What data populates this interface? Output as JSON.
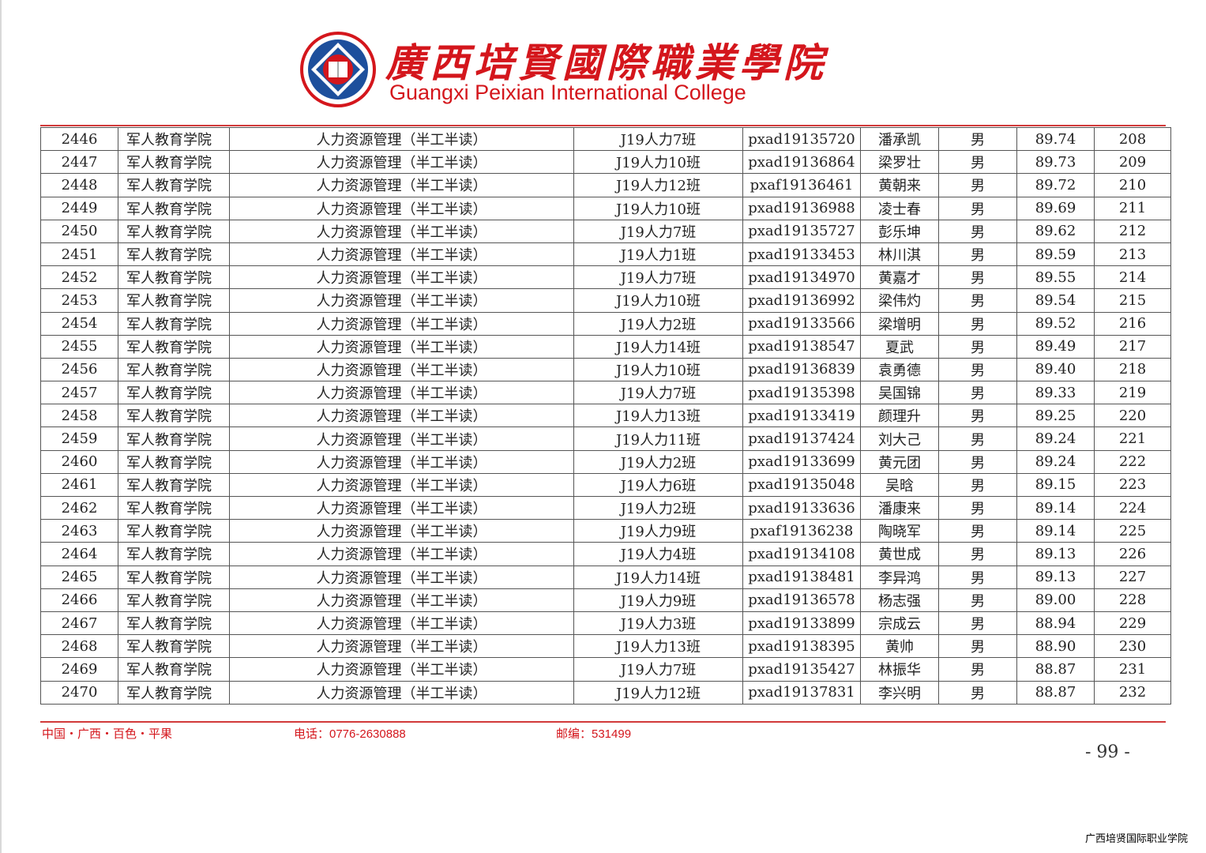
{
  "header": {
    "title_cn": "廣西培賢國際職業學院",
    "title_en": "Guangxi Peixian International College",
    "logo_text": "广西培贤国际职业学院 GUANGXI PEIXIAN INTERNATIONAL COLLEGE",
    "brand_color": "#d4161c"
  },
  "table": {
    "rows": [
      [
        "2446",
        "军人教育学院",
        "人力资源管理（半工半读）",
        "J19人力7班",
        "pxad19135720",
        "潘承凯",
        "男",
        "89.74",
        "208"
      ],
      [
        "2447",
        "军人教育学院",
        "人力资源管理（半工半读）",
        "J19人力10班",
        "pxad19136864",
        "梁罗壮",
        "男",
        "89.73",
        "209"
      ],
      [
        "2448",
        "军人教育学院",
        "人力资源管理（半工半读）",
        "J19人力12班",
        "pxaf19136461",
        "黄朝来",
        "男",
        "89.72",
        "210"
      ],
      [
        "2449",
        "军人教育学院",
        "人力资源管理（半工半读）",
        "J19人力10班",
        "pxad19136988",
        "凌士春",
        "男",
        "89.69",
        "211"
      ],
      [
        "2450",
        "军人教育学院",
        "人力资源管理（半工半读）",
        "J19人力7班",
        "pxad19135727",
        "彭乐坤",
        "男",
        "89.62",
        "212"
      ],
      [
        "2451",
        "军人教育学院",
        "人力资源管理（半工半读）",
        "J19人力1班",
        "pxad19133453",
        "林川淇",
        "男",
        "89.59",
        "213"
      ],
      [
        "2452",
        "军人教育学院",
        "人力资源管理（半工半读）",
        "J19人力7班",
        "pxad19134970",
        "黄嘉才",
        "男",
        "89.55",
        "214"
      ],
      [
        "2453",
        "军人教育学院",
        "人力资源管理（半工半读）",
        "J19人力10班",
        "pxad19136992",
        "梁伟灼",
        "男",
        "89.54",
        "215"
      ],
      [
        "2454",
        "军人教育学院",
        "人力资源管理（半工半读）",
        "J19人力2班",
        "pxad19133566",
        "梁增明",
        "男",
        "89.52",
        "216"
      ],
      [
        "2455",
        "军人教育学院",
        "人力资源管理（半工半读）",
        "J19人力14班",
        "pxad19138547",
        "夏武",
        "男",
        "89.49",
        "217"
      ],
      [
        "2456",
        "军人教育学院",
        "人力资源管理（半工半读）",
        "J19人力10班",
        "pxad19136839",
        "袁勇德",
        "男",
        "89.40",
        "218"
      ],
      [
        "2457",
        "军人教育学院",
        "人力资源管理（半工半读）",
        "J19人力7班",
        "pxad19135398",
        "吴国锦",
        "男",
        "89.33",
        "219"
      ],
      [
        "2458",
        "军人教育学院",
        "人力资源管理（半工半读）",
        "J19人力13班",
        "pxad19133419",
        "颜理升",
        "男",
        "89.25",
        "220"
      ],
      [
        "2459",
        "军人教育学院",
        "人力资源管理（半工半读）",
        "J19人力11班",
        "pxad19137424",
        "刘大己",
        "男",
        "89.24",
        "221"
      ],
      [
        "2460",
        "军人教育学院",
        "人力资源管理（半工半读）",
        "J19人力2班",
        "pxad19133699",
        "黄元团",
        "男",
        "89.24",
        "222"
      ],
      [
        "2461",
        "军人教育学院",
        "人力资源管理（半工半读）",
        "J19人力6班",
        "pxad19135048",
        "吴晗",
        "男",
        "89.15",
        "223"
      ],
      [
        "2462",
        "军人教育学院",
        "人力资源管理（半工半读）",
        "J19人力2班",
        "pxad19133636",
        "潘康来",
        "男",
        "89.14",
        "224"
      ],
      [
        "2463",
        "军人教育学院",
        "人力资源管理（半工半读）",
        "J19人力9班",
        "pxaf19136238",
        "陶晓军",
        "男",
        "89.14",
        "225"
      ],
      [
        "2464",
        "军人教育学院",
        "人力资源管理（半工半读）",
        "J19人力4班",
        "pxad19134108",
        "黄世成",
        "男",
        "89.13",
        "226"
      ],
      [
        "2465",
        "军人教育学院",
        "人力资源管理（半工半读）",
        "J19人力14班",
        "pxad19138481",
        "李异鸿",
        "男",
        "89.13",
        "227"
      ],
      [
        "2466",
        "军人教育学院",
        "人力资源管理（半工半读）",
        "J19人力9班",
        "pxad19136578",
        "杨志强",
        "男",
        "89.00",
        "228"
      ],
      [
        "2467",
        "军人教育学院",
        "人力资源管理（半工半读）",
        "J19人力3班",
        "pxad19133899",
        "宗成云",
        "男",
        "88.94",
        "229"
      ],
      [
        "2468",
        "军人教育学院",
        "人力资源管理（半工半读）",
        "J19人力13班",
        "pxad19138395",
        "黄帅",
        "男",
        "88.90",
        "230"
      ],
      [
        "2469",
        "军人教育学院",
        "人力资源管理（半工半读）",
        "J19人力7班",
        "pxad19135427",
        "林振华",
        "男",
        "88.87",
        "231"
      ],
      [
        "2470",
        "军人教育学院",
        "人力资源管理（半工半读）",
        "J19人力12班",
        "pxad19137831",
        "李兴明",
        "男",
        "88.87",
        "232"
      ]
    ]
  },
  "footer": {
    "address": "中国・广西・百色・平果",
    "phone": "电话：0776-2630888",
    "postcode": "邮编：531499",
    "page_number": "- 99 -",
    "watermark": "广西培贤国际职业学院"
  }
}
